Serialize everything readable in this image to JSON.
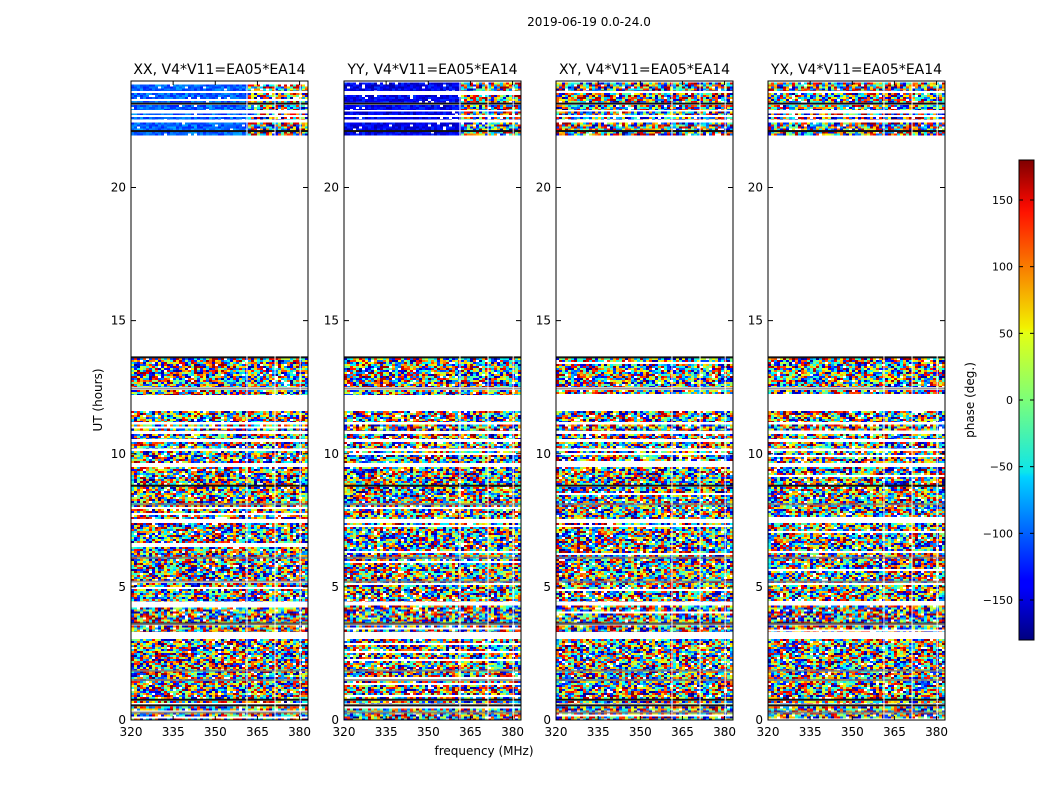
{
  "chart_data": {
    "type": "heatmap",
    "suptitle": "2019-06-19 0.0-24.0",
    "xlabel": "frequency (MHz)",
    "ylabel": "UT (hours)",
    "xlim": [
      320,
      383
    ],
    "ylim": [
      0,
      24
    ],
    "xticks": [
      320,
      335,
      350,
      365,
      380
    ],
    "yticks": [
      0,
      5,
      10,
      15,
      20
    ],
    "panels": [
      {
        "title": "XX, V4*V11=EA05*EA14",
        "pol": "XX",
        "top_bias": -100
      },
      {
        "title": "YY, V4*V11=EA05*EA14",
        "pol": "YY",
        "top_bias": -140
      },
      {
        "title": "XY, V4*V11=EA05*EA14",
        "pol": "XY",
        "top_bias": null
      },
      {
        "title": "YX, V4*V11=EA05*EA14",
        "pol": "YX",
        "top_bias": null
      }
    ],
    "colorbar": {
      "label": "phase (deg.)",
      "range": [
        -180,
        180
      ],
      "ticks": [
        -150,
        -100,
        -50,
        0,
        50,
        100,
        150
      ],
      "colormap": "jet"
    },
    "data_bands_hours": [
      [
        0.0,
        0.5
      ],
      [
        0.62,
        0.72
      ],
      [
        0.78,
        3.05
      ],
      [
        3.3,
        3.55
      ],
      [
        3.62,
        4.3
      ],
      [
        4.45,
        7.4
      ],
      [
        7.55,
        9.5
      ],
      [
        9.65,
        10.1
      ],
      [
        10.2,
        10.45
      ],
      [
        10.55,
        10.75
      ],
      [
        10.85,
        11.1
      ],
      [
        11.2,
        11.6
      ],
      [
        12.2,
        12.4
      ],
      [
        12.5,
        13.6
      ],
      [
        21.95,
        22.1
      ],
      [
        22.15,
        22.45
      ],
      [
        22.55,
        22.65
      ],
      [
        22.72,
        22.85
      ],
      [
        22.92,
        23.1
      ],
      [
        23.2,
        23.55
      ],
      [
        23.62,
        23.95
      ]
    ],
    "flag_lines_hours": [
      0.55,
      0.76,
      3.62,
      8.8,
      13.62,
      22.12,
      23.15
    ],
    "grey_bars_hours": [
      0.28,
      1.5,
      1.85,
      3.6,
      5.2,
      6.1,
      8.1,
      12.45
    ],
    "nan_freq_columns_mhz": [
      361,
      371,
      380
    ]
  }
}
